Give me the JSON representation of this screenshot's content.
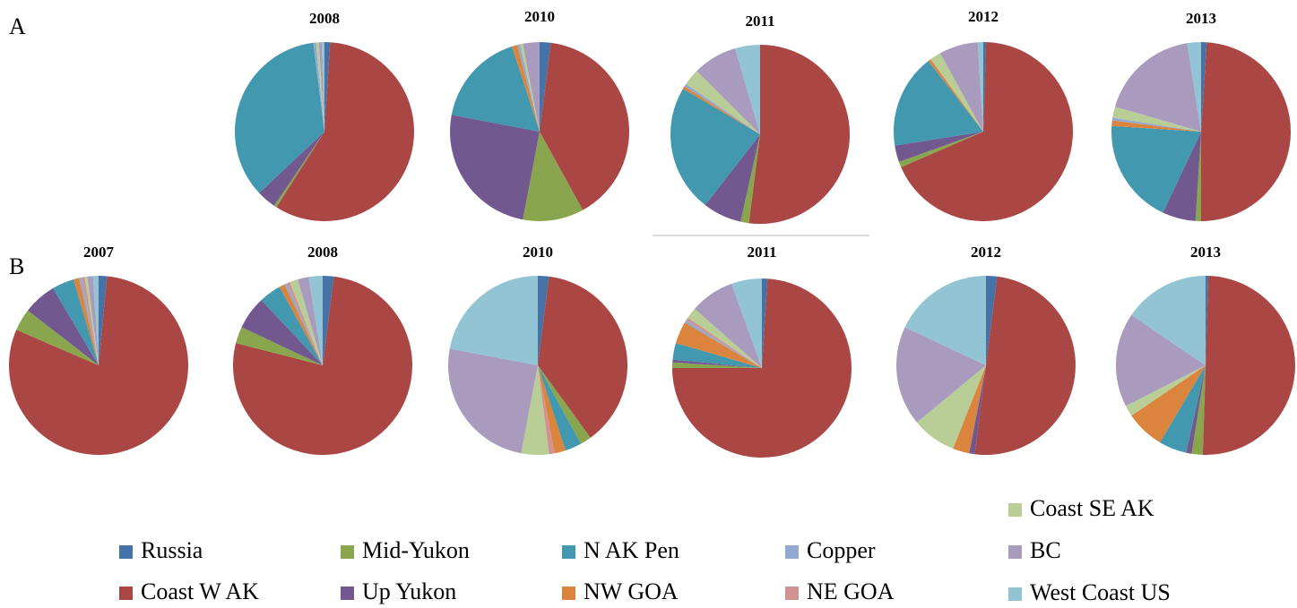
{
  "panel_labels": [
    "A",
    "B"
  ],
  "legend": {
    "categories": [
      "Russia",
      "Coast W AK",
      "Mid-Yukon",
      "Up Yukon",
      "N AK Pen",
      "NW GOA",
      "Copper",
      "NE GOA",
      "Coast SE AK",
      "BC",
      "West Coast US"
    ],
    "colors": [
      "#4572a7",
      "#aa4643",
      "#89a54e",
      "#71588f",
      "#4198af",
      "#db843d",
      "#93a9cf",
      "#d19392",
      "#b9cd96",
      "#a99bbd",
      "#92c4d4"
    ]
  },
  "chart_data": [
    {
      "type": "pie",
      "title": "2008",
      "values": [
        1,
        58,
        0.5,
        3.5,
        35,
        0,
        0.5,
        0,
        0.5,
        0.5,
        0.5
      ]
    },
    {
      "type": "pie",
      "title": "2010",
      "values": [
        2,
        40,
        11,
        25,
        17,
        1,
        0.5,
        0,
        0.5,
        3,
        0
      ]
    },
    {
      "type": "pie",
      "title": "2011",
      "values": [
        0,
        52,
        1.5,
        7,
        23,
        0.5,
        0.5,
        0,
        3,
        8,
        4.5
      ]
    },
    {
      "type": "pie",
      "title": "2012",
      "values": [
        0.5,
        68,
        1,
        3,
        17,
        0.5,
        0,
        0,
        2,
        7,
        1
      ]
    },
    {
      "type": "pie",
      "title": "2013",
      "values": [
        1,
        49,
        1,
        6,
        19,
        1,
        0.5,
        0,
        2,
        18,
        2.5
      ]
    },
    {
      "type": "pie",
      "title": "2007",
      "values": [
        1.5,
        80,
        4,
        6,
        4,
        1,
        0.5,
        0.5,
        0.5,
        1,
        1
      ]
    },
    {
      "type": "pie",
      "title": "2008",
      "values": [
        2,
        77,
        3,
        6,
        4,
        1,
        0.5,
        0.5,
        1.5,
        2,
        2.5
      ]
    },
    {
      "type": "pie",
      "title": "2010",
      "values": [
        2,
        38,
        2,
        0,
        3,
        2,
        0,
        1,
        5,
        25,
        22
      ]
    },
    {
      "type": "pie",
      "title": "2011",
      "values": [
        1,
        74,
        1,
        0.5,
        3,
        4,
        0.5,
        0.5,
        2,
        8,
        5.5
      ]
    },
    {
      "type": "pie",
      "title": "2012",
      "values": [
        2,
        50,
        0,
        1,
        0,
        3,
        0,
        0,
        8,
        18,
        18
      ]
    },
    {
      "type": "pie",
      "title": "2013",
      "values": [
        0.5,
        50,
        2,
        1,
        5,
        7,
        0,
        0,
        2,
        17,
        15.5
      ]
    }
  ]
}
